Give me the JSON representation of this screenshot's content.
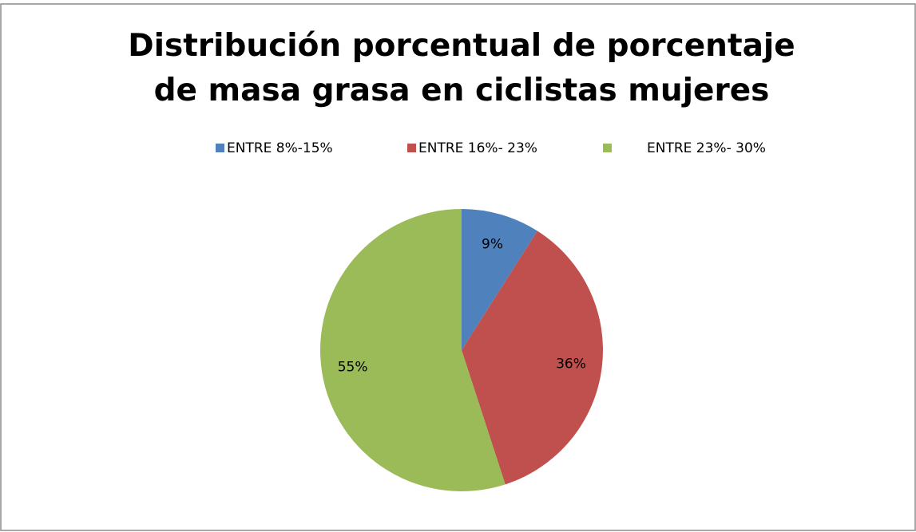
{
  "chart_data": {
    "type": "pie",
    "title": "Distribución porcentual de porcentaje de masa grasa en ciclistas mujeres",
    "categories": [
      "ENTRE 8%-15%",
      "ENTRE 16%- 23%",
      "ENTRE 23%- 30%"
    ],
    "values": [
      9,
      36,
      55
    ],
    "value_labels": [
      "9%",
      "36%",
      "55%"
    ],
    "colors": [
      "#4f81bd",
      "#c0504d",
      "#9bbb59"
    ],
    "legend": "top"
  }
}
